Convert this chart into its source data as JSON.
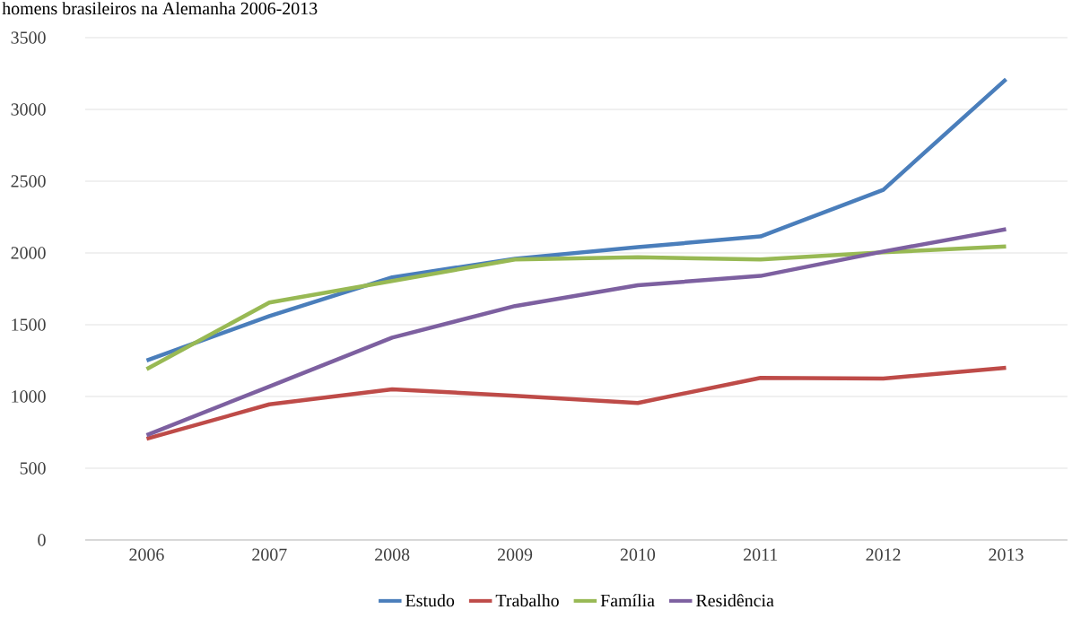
{
  "chart_data": {
    "type": "line",
    "title": "homens brasileiros na Alemanha 2006-2013",
    "categories": [
      "2006",
      "2007",
      "2008",
      "2009",
      "2010",
      "2011",
      "2012",
      "2013"
    ],
    "series": [
      {
        "name": "Estudo",
        "color": "#4a7ebb",
        "values": [
          1250,
          1560,
          1830,
          1960,
          2040,
          2115,
          2440,
          3210
        ]
      },
      {
        "name": "Trabalho",
        "color": "#be4b48",
        "values": [
          705,
          945,
          1050,
          1005,
          955,
          1130,
          1125,
          1200
        ]
      },
      {
        "name": "Família",
        "color": "#98b954",
        "values": [
          1190,
          1655,
          1805,
          1955,
          1970,
          1955,
          2005,
          2045
        ]
      },
      {
        "name": "Residência",
        "color": "#7d60a0",
        "values": [
          730,
          1070,
          1410,
          1630,
          1775,
          1840,
          2010,
          2165
        ]
      }
    ],
    "ylim": [
      0,
      3500
    ],
    "yticks": [
      0,
      500,
      1000,
      1500,
      2000,
      2500,
      3000,
      3500
    ],
    "grid": "y",
    "legend": "bottom",
    "marker": "none",
    "line_style": "solid"
  }
}
